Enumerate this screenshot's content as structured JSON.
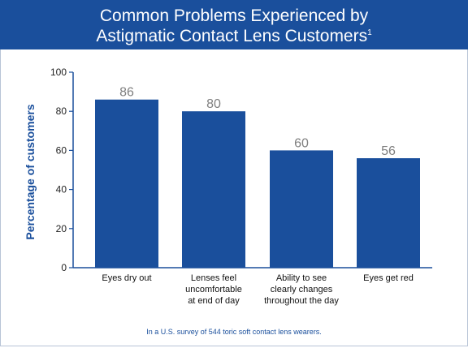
{
  "chart_data": {
    "type": "bar",
    "title_lines": [
      "Common Problems Experienced by",
      "Astigmatic Contact Lens Customers"
    ],
    "title_footnote_mark": "1",
    "ylabel": "Percentage of customers",
    "xlabel": "",
    "categories": [
      [
        "Eyes dry out"
      ],
      [
        "Lenses feel",
        "uncomfortable",
        "at end of day"
      ],
      [
        "Ability to see",
        "clearly changes",
        "throughout the day"
      ],
      [
        "Eyes get red"
      ]
    ],
    "values": [
      86,
      80,
      60,
      56
    ],
    "ylim": [
      0,
      100
    ],
    "yticks": [
      0,
      20,
      40,
      60,
      80,
      100
    ],
    "grid": false,
    "legend": "none",
    "footnote": "In a U.S. survey of 544 toric soft contact lens wearers."
  },
  "colors": {
    "bar": "#1a4f9c",
    "header_bg": "#1a4f9c",
    "value_label": "#7f7f7f",
    "axis": "#1a4f9c"
  }
}
